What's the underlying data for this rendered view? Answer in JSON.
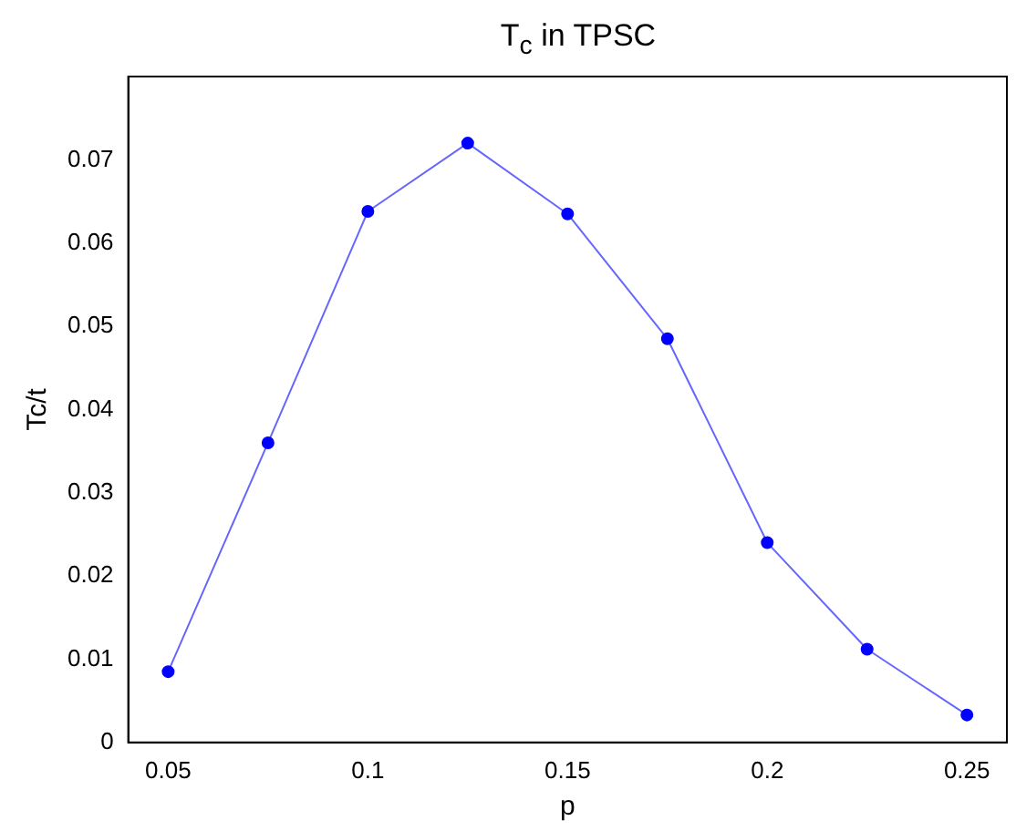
{
  "chart_data": {
    "type": "line",
    "title": "T$_{c}$ in TPSC",
    "xlabel": "p",
    "ylabel": "Tc/t",
    "x": [
      0.05,
      0.075,
      0.1,
      0.125,
      0.15,
      0.175,
      0.2,
      0.225,
      0.25
    ],
    "series": [
      {
        "color": "#0000ff",
        "values": [
          0.0085,
          0.036,
          0.0638,
          0.072,
          0.0635,
          0.0485,
          0.024,
          0.0112,
          0.0033
        ]
      }
    ],
    "xlim": [
      0.04,
      0.26
    ],
    "xticks": [
      0.05,
      0.1,
      0.15,
      0.2,
      0.25
    ],
    "ylim": [
      0,
      0.08
    ],
    "yticks": [
      0,
      0.01,
      0.02,
      0.03,
      0.04,
      0.05,
      0.06,
      0.07
    ],
    "grid": false,
    "legend": false,
    "marker": "circle",
    "line_style": "solid"
  }
}
